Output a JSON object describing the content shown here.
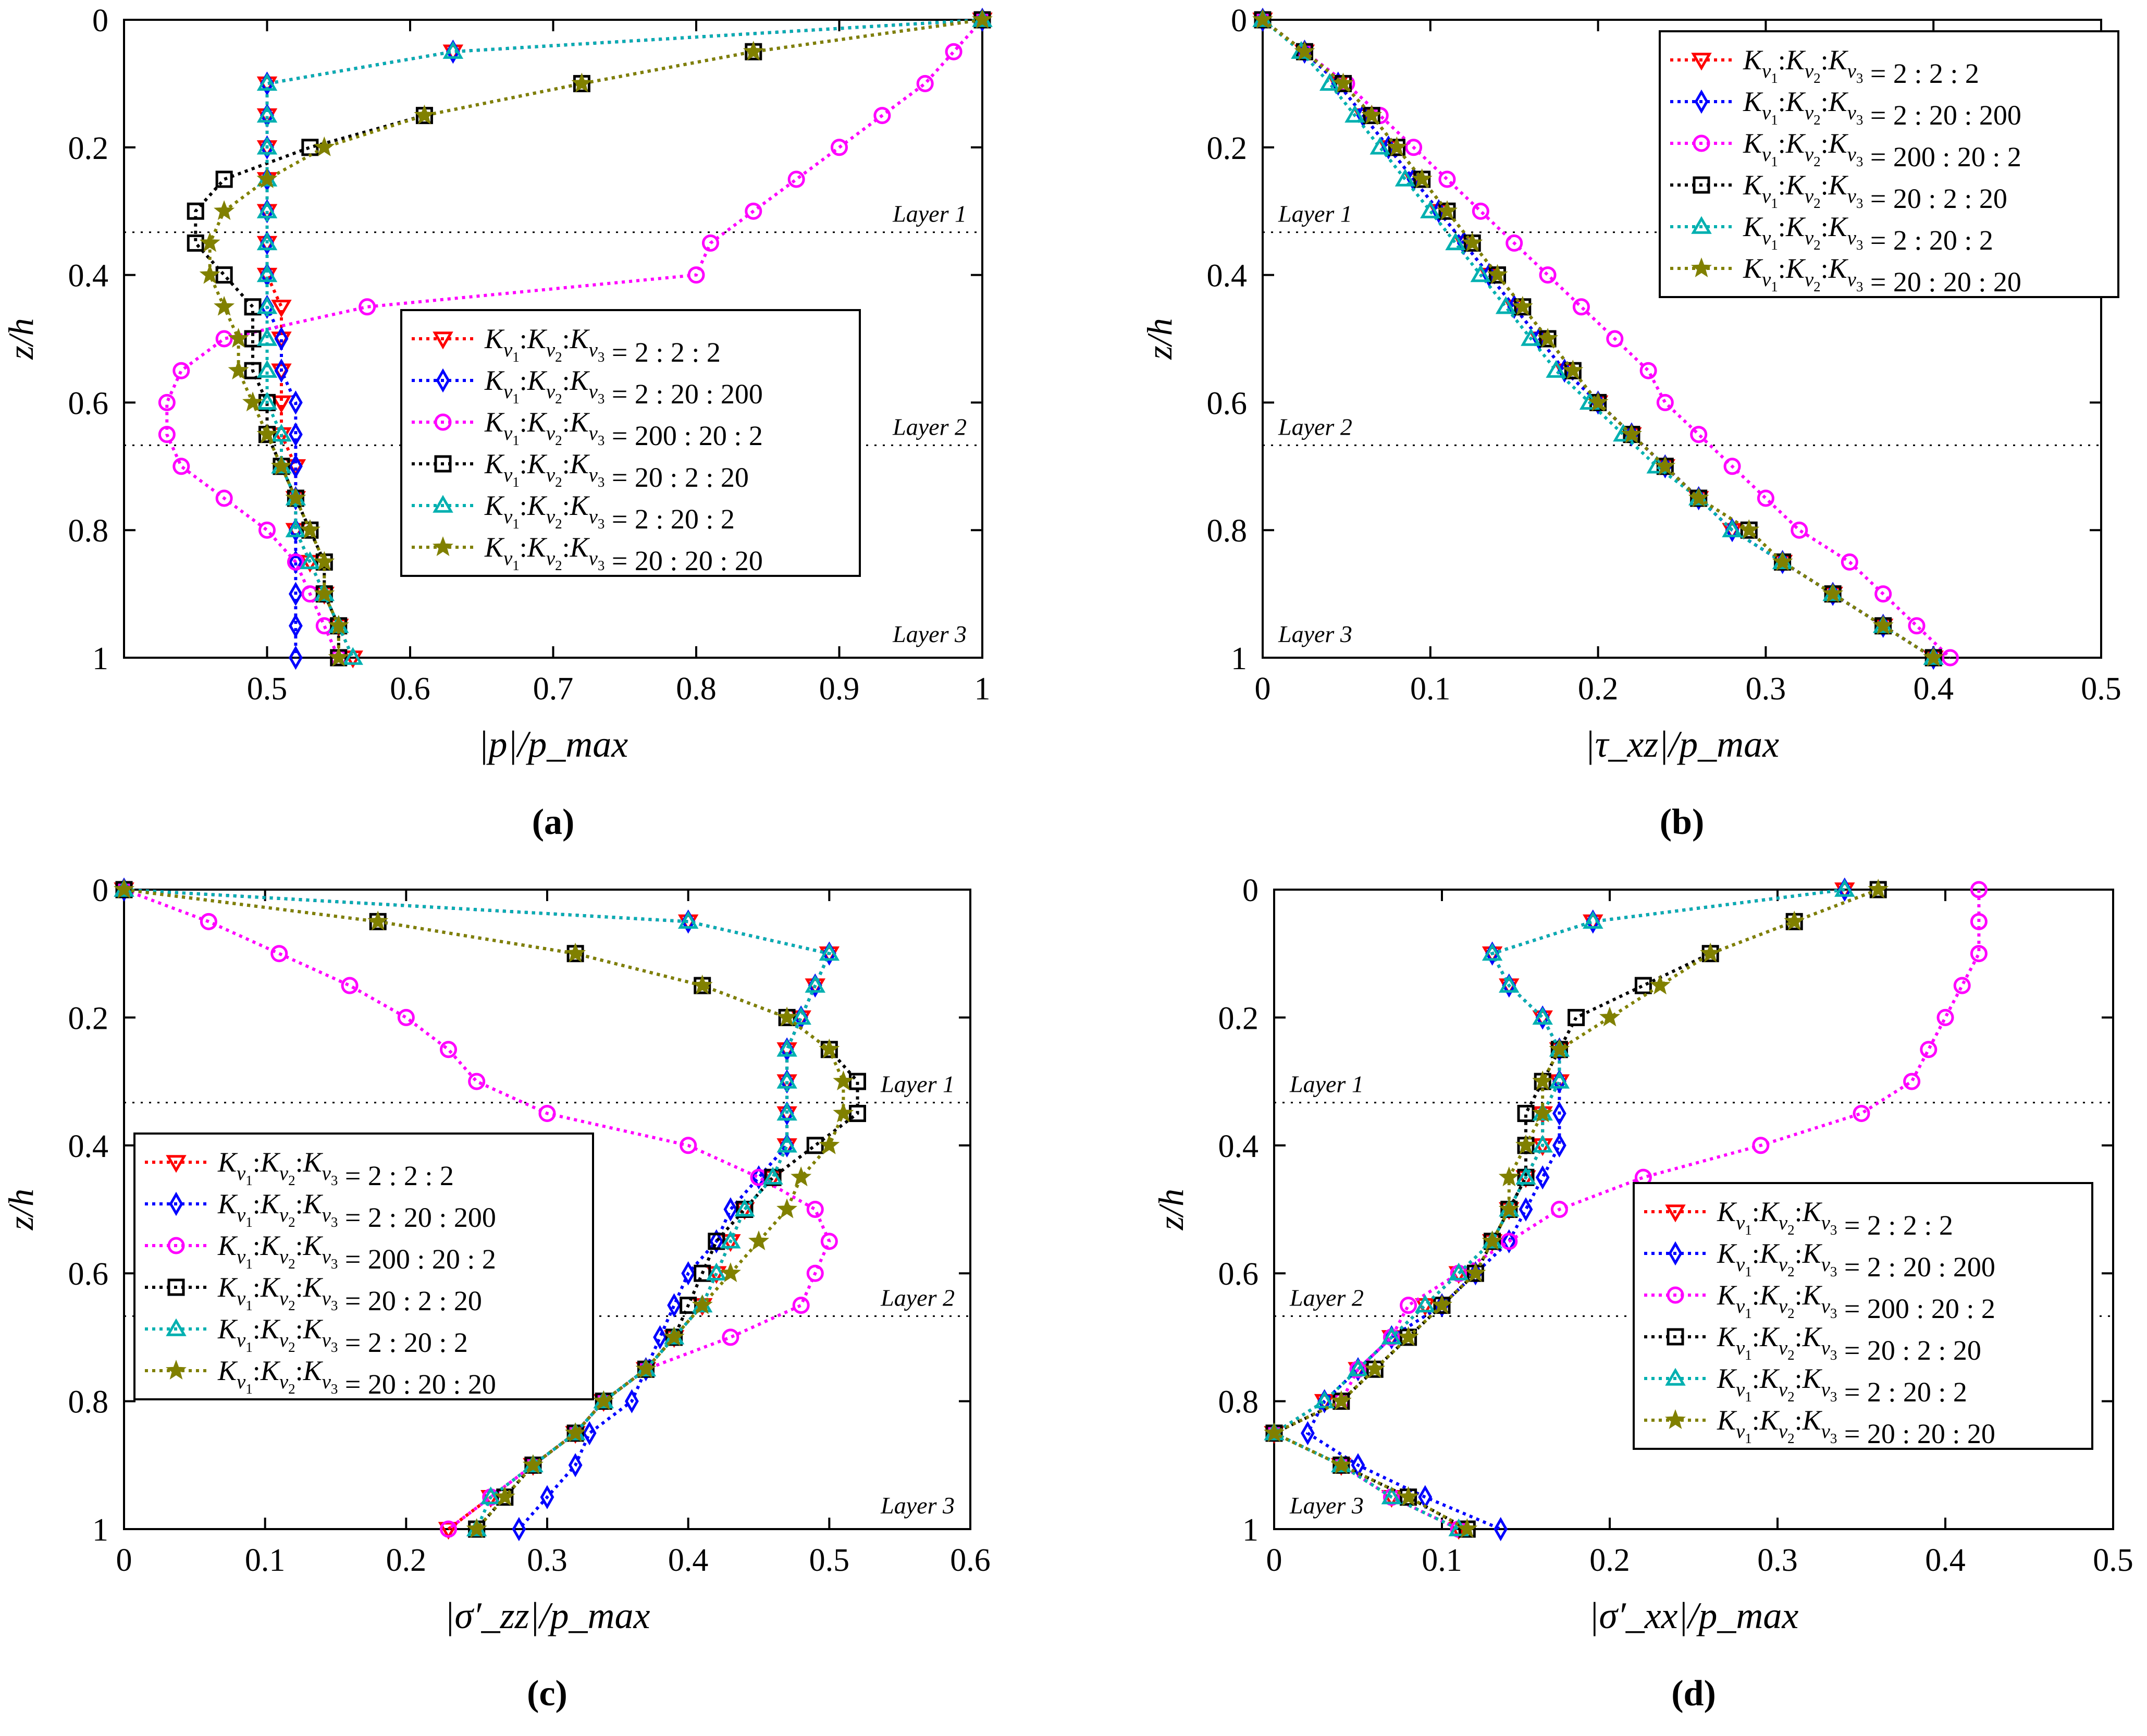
{
  "figure": {
    "series_styles": [
      {
        "color": "#ff0000",
        "marker": "triangle-down"
      },
      {
        "color": "#0000ff",
        "marker": "diamond"
      },
      {
        "color": "#ff00ff",
        "marker": "circle"
      },
      {
        "color": "#000000",
        "marker": "square"
      },
      {
        "color": "#00b0b0",
        "marker": "triangle-up"
      },
      {
        "color": "#808000",
        "marker": "star"
      }
    ],
    "layer_labels": [
      "Layer 1",
      "Layer 2",
      "Layer 3"
    ]
  },
  "chart_data": [
    {
      "type": "line",
      "panel_label": "(a)",
      "title": "",
      "xlabel": "|p|/p_max",
      "ylabel": "z/h",
      "xlim": [
        0.4,
        1.0
      ],
      "ylim": [
        1,
        0
      ],
      "x_ticks": [
        0.5,
        0.6,
        0.7,
        0.8,
        0.9,
        1.0
      ],
      "x_tick_labels": [
        "0.5",
        "0.6",
        "0.7",
        "0.8",
        "0.9",
        "1"
      ],
      "y_ticks": [
        0,
        0.2,
        0.4,
        0.6,
        0.8,
        1
      ],
      "y_tick_labels": [
        "0",
        "0.2",
        "0.4",
        "0.6",
        "0.8",
        "1"
      ],
      "layer_lines": [
        0.333,
        0.667
      ],
      "legend_position": "center-right",
      "z": [
        0,
        0.05,
        0.1,
        0.15,
        0.2,
        0.25,
        0.3,
        0.35,
        0.4,
        0.45,
        0.5,
        0.55,
        0.6,
        0.65,
        0.7,
        0.75,
        0.8,
        0.85,
        0.9,
        0.95,
        1.0
      ],
      "series": [
        {
          "name": "K_v1:K_v2:K_v3 = 2 : 2 : 2",
          "values": [
            1.0,
            0.63,
            0.5,
            0.5,
            0.5,
            0.5,
            0.5,
            0.5,
            0.5,
            0.51,
            0.51,
            0.51,
            0.51,
            0.51,
            0.52,
            0.52,
            0.52,
            0.53,
            0.54,
            0.55,
            0.56
          ]
        },
        {
          "name": "K_v1:K_v2:K_v3 = 2 : 20 : 200",
          "values": [
            1.0,
            0.63,
            0.5,
            0.5,
            0.5,
            0.5,
            0.5,
            0.5,
            0.5,
            0.5,
            0.51,
            0.51,
            0.52,
            0.52,
            0.52,
            0.52,
            0.52,
            0.52,
            0.52,
            0.52,
            0.52
          ]
        },
        {
          "name": "K_v1:K_v2:K_v3 = 200 : 20 : 2",
          "values": [
            1.0,
            0.98,
            0.96,
            0.93,
            0.9,
            0.87,
            0.84,
            0.81,
            0.8,
            0.57,
            0.47,
            0.44,
            0.43,
            0.43,
            0.44,
            0.47,
            0.5,
            0.52,
            0.53,
            0.54,
            0.55
          ]
        },
        {
          "name": "K_v1:K_v2:K_v3 = 20 : 2 : 20",
          "values": [
            1.0,
            0.84,
            0.72,
            0.61,
            0.53,
            0.47,
            0.45,
            0.45,
            0.47,
            0.49,
            0.49,
            0.49,
            0.5,
            0.5,
            0.51,
            0.52,
            0.53,
            0.54,
            0.54,
            0.55,
            0.55
          ]
        },
        {
          "name": "K_v1:K_v2:K_v3 = 2 : 20 : 2",
          "values": [
            1.0,
            0.63,
            0.5,
            0.5,
            0.5,
            0.5,
            0.5,
            0.5,
            0.5,
            0.5,
            0.5,
            0.5,
            0.5,
            0.51,
            0.51,
            0.52,
            0.52,
            0.53,
            0.54,
            0.55,
            0.56
          ]
        },
        {
          "name": "K_v1:K_v2:K_v3 = 20 : 20 : 20",
          "values": [
            1.0,
            0.84,
            0.72,
            0.61,
            0.54,
            0.5,
            0.47,
            0.46,
            0.46,
            0.47,
            0.48,
            0.48,
            0.49,
            0.5,
            0.51,
            0.52,
            0.53,
            0.54,
            0.54,
            0.55,
            0.55
          ]
        }
      ]
    },
    {
      "type": "line",
      "panel_label": "(b)",
      "title": "",
      "xlabel": "|τ_xz|/p_max",
      "ylabel": "z/h",
      "xlim": [
        0,
        0.5
      ],
      "ylim": [
        1,
        0
      ],
      "x_ticks": [
        0,
        0.1,
        0.2,
        0.3,
        0.4,
        0.5
      ],
      "x_tick_labels": [
        "0",
        "0.1",
        "0.2",
        "0.3",
        "0.4",
        "0.5"
      ],
      "y_ticks": [
        0,
        0.2,
        0.4,
        0.6,
        0.8,
        1
      ],
      "y_tick_labels": [
        "0",
        "0.2",
        "0.4",
        "0.6",
        "0.8",
        "1"
      ],
      "layer_lines": [
        0.333,
        0.667
      ],
      "legend_position": "top-right",
      "z": [
        0,
        0.05,
        0.1,
        0.15,
        0.2,
        0.25,
        0.3,
        0.35,
        0.4,
        0.45,
        0.5,
        0.55,
        0.6,
        0.65,
        0.7,
        0.75,
        0.8,
        0.85,
        0.9,
        0.95,
        1.0
      ],
      "series": [
        {
          "name": "K_v1:K_v2:K_v3 = 2 : 2 : 2",
          "values": [
            0,
            0.025,
            0.045,
            0.06,
            0.075,
            0.09,
            0.105,
            0.12,
            0.135,
            0.15,
            0.165,
            0.18,
            0.2,
            0.22,
            0.24,
            0.26,
            0.28,
            0.31,
            0.34,
            0.37,
            0.4
          ]
        },
        {
          "name": "K_v1:K_v2:K_v3 = 2 : 20 : 200",
          "values": [
            0,
            0.025,
            0.045,
            0.06,
            0.075,
            0.09,
            0.105,
            0.12,
            0.135,
            0.15,
            0.165,
            0.18,
            0.2,
            0.22,
            0.24,
            0.26,
            0.28,
            0.31,
            0.34,
            0.37,
            0.4
          ]
        },
        {
          "name": "K_v1:K_v2:K_v3 = 200 : 20 : 2",
          "values": [
            0,
            0.025,
            0.05,
            0.07,
            0.09,
            0.11,
            0.13,
            0.15,
            0.17,
            0.19,
            0.21,
            0.23,
            0.24,
            0.26,
            0.28,
            0.3,
            0.32,
            0.35,
            0.37,
            0.39,
            0.41
          ]
        },
        {
          "name": "K_v1:K_v2:K_v3 = 20 : 2 : 20",
          "values": [
            0,
            0.025,
            0.048,
            0.065,
            0.08,
            0.095,
            0.11,
            0.125,
            0.14,
            0.155,
            0.17,
            0.185,
            0.2,
            0.22,
            0.24,
            0.26,
            0.29,
            0.31,
            0.34,
            0.37,
            0.4
          ]
        },
        {
          "name": "K_v1:K_v2:K_v3 = 2 : 20 : 2",
          "values": [
            0,
            0.023,
            0.04,
            0.055,
            0.07,
            0.085,
            0.1,
            0.115,
            0.13,
            0.145,
            0.16,
            0.175,
            0.195,
            0.215,
            0.235,
            0.26,
            0.28,
            0.31,
            0.34,
            0.37,
            0.4
          ]
        },
        {
          "name": "K_v1:K_v2:K_v3 = 20 : 20 : 20",
          "values": [
            0,
            0.025,
            0.048,
            0.065,
            0.08,
            0.095,
            0.11,
            0.125,
            0.14,
            0.155,
            0.17,
            0.185,
            0.2,
            0.22,
            0.24,
            0.26,
            0.29,
            0.31,
            0.34,
            0.37,
            0.4
          ]
        }
      ]
    },
    {
      "type": "line",
      "panel_label": "(c)",
      "title": "",
      "xlabel": "|σ′_zz|/p_max",
      "ylabel": "z/h",
      "xlim": [
        0,
        0.6
      ],
      "ylim": [
        1,
        0
      ],
      "x_ticks": [
        0,
        0.1,
        0.2,
        0.3,
        0.4,
        0.5,
        0.6
      ],
      "x_tick_labels": [
        "0",
        "0.1",
        "0.2",
        "0.3",
        "0.4",
        "0.5",
        "0.6"
      ],
      "y_ticks": [
        0,
        0.2,
        0.4,
        0.6,
        0.8,
        1
      ],
      "y_tick_labels": [
        "0",
        "0.2",
        "0.4",
        "0.6",
        "0.8",
        "1"
      ],
      "layer_lines": [
        0.333,
        0.667
      ],
      "legend_position": "center-left",
      "z": [
        0,
        0.05,
        0.1,
        0.15,
        0.2,
        0.25,
        0.3,
        0.35,
        0.4,
        0.45,
        0.5,
        0.55,
        0.6,
        0.65,
        0.7,
        0.75,
        0.8,
        0.85,
        0.9,
        0.95,
        1.0
      ],
      "series": [
        {
          "name": "K_v1:K_v2:K_v3 = 2 : 2 : 2",
          "values": [
            0,
            0.4,
            0.5,
            0.49,
            0.48,
            0.47,
            0.47,
            0.47,
            0.47,
            0.46,
            0.44,
            0.43,
            0.42,
            0.41,
            0.39,
            0.37,
            0.34,
            0.32,
            0.29,
            0.26,
            0.23
          ]
        },
        {
          "name": "K_v1:K_v2:K_v3 = 2 : 20 : 200",
          "values": [
            0,
            0.4,
            0.5,
            0.49,
            0.48,
            0.47,
            0.47,
            0.47,
            0.47,
            0.45,
            0.43,
            0.42,
            0.4,
            0.39,
            0.38,
            0.37,
            0.36,
            0.33,
            0.32,
            0.3,
            0.28
          ]
        },
        {
          "name": "K_v1:K_v2:K_v3 = 200 : 20 : 2",
          "values": [
            0,
            0.06,
            0.11,
            0.16,
            0.2,
            0.23,
            0.25,
            0.3,
            0.4,
            0.45,
            0.49,
            0.5,
            0.49,
            0.48,
            0.43,
            0.37,
            0.34,
            0.32,
            0.29,
            0.26,
            0.23
          ]
        },
        {
          "name": "K_v1:K_v2:K_v3 = 20 : 2 : 20",
          "values": [
            0,
            0.18,
            0.32,
            0.41,
            0.47,
            0.5,
            0.52,
            0.52,
            0.49,
            0.46,
            0.44,
            0.42,
            0.41,
            0.4,
            0.39,
            0.37,
            0.34,
            0.32,
            0.29,
            0.27,
            0.25
          ]
        },
        {
          "name": "K_v1:K_v2:K_v3 = 2 : 20 : 2",
          "values": [
            0,
            0.4,
            0.5,
            0.49,
            0.48,
            0.47,
            0.47,
            0.47,
            0.47,
            0.46,
            0.44,
            0.43,
            0.42,
            0.41,
            0.39,
            0.37,
            0.34,
            0.32,
            0.29,
            0.26,
            0.25
          ]
        },
        {
          "name": "K_v1:K_v2:K_v3 = 20 : 20 : 20",
          "values": [
            0,
            0.18,
            0.32,
            0.41,
            0.47,
            0.5,
            0.51,
            0.51,
            0.5,
            0.48,
            0.47,
            0.45,
            0.43,
            0.41,
            0.39,
            0.37,
            0.34,
            0.32,
            0.29,
            0.27,
            0.25
          ]
        }
      ]
    },
    {
      "type": "line",
      "panel_label": "(d)",
      "title": "",
      "xlabel": "|σ′_xx|/p_max",
      "ylabel": "z/h",
      "xlim": [
        0,
        0.5
      ],
      "ylim": [
        1,
        0
      ],
      "x_ticks": [
        0,
        0.1,
        0.2,
        0.3,
        0.4,
        0.5
      ],
      "x_tick_labels": [
        "0",
        "0.1",
        "0.2",
        "0.3",
        "0.4",
        "0.5"
      ],
      "y_ticks": [
        0,
        0.2,
        0.4,
        0.6,
        0.8,
        1
      ],
      "y_tick_labels": [
        "0",
        "0.2",
        "0.4",
        "0.6",
        "0.8",
        "1"
      ],
      "layer_lines": [
        0.333,
        0.667
      ],
      "legend_position": "bottom-right",
      "z": [
        0,
        0.05,
        0.1,
        0.15,
        0.2,
        0.25,
        0.3,
        0.35,
        0.4,
        0.45,
        0.5,
        0.55,
        0.6,
        0.65,
        0.7,
        0.75,
        0.8,
        0.85,
        0.9,
        0.95,
        1.0
      ],
      "series": [
        {
          "name": "K_v1:K_v2:K_v3 = 2 : 2 : 2",
          "values": [
            0.34,
            0.19,
            0.13,
            0.14,
            0.16,
            0.17,
            0.17,
            0.16,
            0.16,
            0.15,
            0.14,
            0.13,
            0.11,
            0.09,
            0.07,
            0.05,
            0.03,
            0.0,
            0.04,
            0.07,
            0.11
          ]
        },
        {
          "name": "K_v1:K_v2:K_v3 = 2 : 20 : 200",
          "values": [
            0.34,
            0.19,
            0.13,
            0.14,
            0.16,
            0.17,
            0.17,
            0.17,
            0.17,
            0.16,
            0.15,
            0.14,
            0.12,
            0.1,
            0.07,
            0.05,
            0.03,
            0.02,
            0.05,
            0.09,
            0.135
          ]
        },
        {
          "name": "K_v1:K_v2:K_v3 = 200 : 20 : 2",
          "values": [
            0.42,
            0.42,
            0.42,
            0.41,
            0.4,
            0.39,
            0.38,
            0.35,
            0.29,
            0.22,
            0.17,
            0.14,
            0.11,
            0.08,
            0.07,
            0.05,
            0.04,
            0.0,
            0.04,
            0.07,
            0.11
          ]
        },
        {
          "name": "K_v1:K_v2:K_v3 = 20 : 2 : 20",
          "values": [
            0.36,
            0.31,
            0.26,
            0.22,
            0.18,
            0.17,
            0.16,
            0.15,
            0.15,
            0.15,
            0.14,
            0.13,
            0.12,
            0.1,
            0.08,
            0.06,
            0.04,
            0.0,
            0.04,
            0.08,
            0.115
          ]
        },
        {
          "name": "K_v1:K_v2:K_v3 = 2 : 20 : 2",
          "values": [
            0.34,
            0.19,
            0.13,
            0.14,
            0.16,
            0.17,
            0.17,
            0.16,
            0.16,
            0.15,
            0.14,
            0.13,
            0.11,
            0.09,
            0.07,
            0.05,
            0.03,
            0.0,
            0.04,
            0.07,
            0.11
          ]
        },
        {
          "name": "K_v1:K_v2:K_v3 = 20 : 20 : 20",
          "values": [
            0.36,
            0.31,
            0.26,
            0.23,
            0.2,
            0.17,
            0.16,
            0.16,
            0.15,
            0.14,
            0.14,
            0.13,
            0.12,
            0.1,
            0.08,
            0.06,
            0.04,
            0.0,
            0.04,
            0.08,
            0.115
          ]
        }
      ]
    }
  ]
}
